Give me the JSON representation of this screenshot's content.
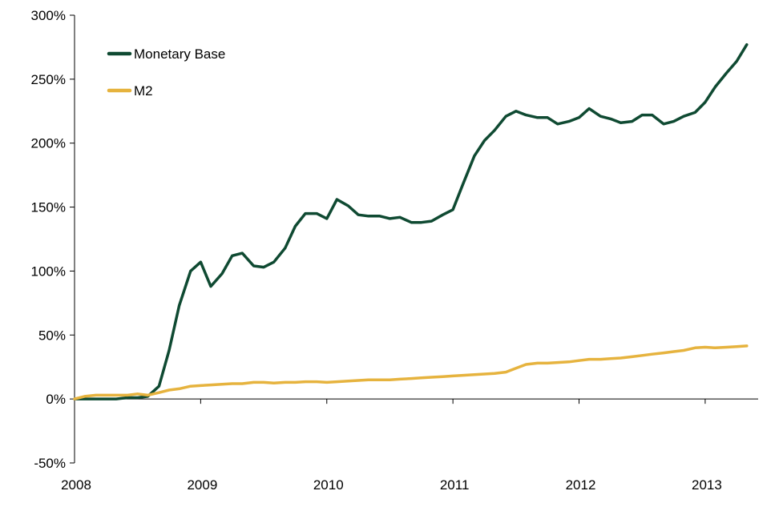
{
  "chart_data": {
    "type": "line",
    "title": "",
    "xlabel": "",
    "ylabel": "",
    "x_tick_labels": [
      "2008",
      "2009",
      "2010",
      "2011",
      "2012",
      "2013"
    ],
    "y_tick_labels": [
      "-50%",
      "0%",
      "50%",
      "100%",
      "150%",
      "200%",
      "250%",
      "300%"
    ],
    "ylim": [
      -50,
      300
    ],
    "xlim": [
      2008.0,
      2013.42
    ],
    "grid": false,
    "legend_position": "top-left",
    "series": [
      {
        "name": "Monetary Base",
        "color": "#0f4a32",
        "points": [
          [
            2008.0,
            0
          ],
          [
            2008.08,
            0
          ],
          [
            2008.17,
            0
          ],
          [
            2008.25,
            0
          ],
          [
            2008.33,
            0
          ],
          [
            2008.42,
            1
          ],
          [
            2008.5,
            1
          ],
          [
            2008.58,
            2
          ],
          [
            2008.67,
            10
          ],
          [
            2008.75,
            38
          ],
          [
            2008.83,
            73
          ],
          [
            2008.92,
            100
          ],
          [
            2009.0,
            107
          ],
          [
            2009.08,
            88
          ],
          [
            2009.17,
            98
          ],
          [
            2009.25,
            112
          ],
          [
            2009.33,
            114
          ],
          [
            2009.42,
            104
          ],
          [
            2009.5,
            103
          ],
          [
            2009.58,
            107
          ],
          [
            2009.67,
            118
          ],
          [
            2009.75,
            135
          ],
          [
            2009.83,
            145
          ],
          [
            2009.92,
            145
          ],
          [
            2010.0,
            141
          ],
          [
            2010.08,
            156
          ],
          [
            2010.17,
            151
          ],
          [
            2010.25,
            144
          ],
          [
            2010.33,
            143
          ],
          [
            2010.42,
            143
          ],
          [
            2010.5,
            141
          ],
          [
            2010.58,
            142
          ],
          [
            2010.67,
            138
          ],
          [
            2010.75,
            138
          ],
          [
            2010.83,
            139
          ],
          [
            2010.92,
            144
          ],
          [
            2011.0,
            148
          ],
          [
            2011.08,
            168
          ],
          [
            2011.17,
            190
          ],
          [
            2011.25,
            202
          ],
          [
            2011.33,
            210
          ],
          [
            2011.42,
            221
          ],
          [
            2011.5,
            225
          ],
          [
            2011.58,
            222
          ],
          [
            2011.67,
            220
          ],
          [
            2011.75,
            220
          ],
          [
            2011.83,
            215
          ],
          [
            2011.92,
            217
          ],
          [
            2012.0,
            220
          ],
          [
            2012.08,
            227
          ],
          [
            2012.17,
            221
          ],
          [
            2012.25,
            219
          ],
          [
            2012.33,
            216
          ],
          [
            2012.42,
            217
          ],
          [
            2012.5,
            222
          ],
          [
            2012.58,
            222
          ],
          [
            2012.67,
            215
          ],
          [
            2012.75,
            217
          ],
          [
            2012.83,
            221
          ],
          [
            2012.92,
            224
          ],
          [
            2013.0,
            232
          ],
          [
            2013.08,
            244
          ],
          [
            2013.17,
            255
          ],
          [
            2013.25,
            264
          ],
          [
            2013.33,
            277
          ]
        ]
      },
      {
        "name": "M2",
        "color": "#e6b33e",
        "points": [
          [
            2008.0,
            0
          ],
          [
            2008.08,
            2
          ],
          [
            2008.17,
            3
          ],
          [
            2008.25,
            3
          ],
          [
            2008.33,
            3
          ],
          [
            2008.42,
            3
          ],
          [
            2008.5,
            4
          ],
          [
            2008.58,
            3
          ],
          [
            2008.67,
            5
          ],
          [
            2008.75,
            7
          ],
          [
            2008.83,
            8
          ],
          [
            2008.92,
            10
          ],
          [
            2009.0,
            10.5
          ],
          [
            2009.08,
            11
          ],
          [
            2009.17,
            11.5
          ],
          [
            2009.25,
            12
          ],
          [
            2009.33,
            12
          ],
          [
            2009.42,
            13
          ],
          [
            2009.5,
            13
          ],
          [
            2009.58,
            12.5
          ],
          [
            2009.67,
            13
          ],
          [
            2009.75,
            13
          ],
          [
            2009.83,
            13.5
          ],
          [
            2009.92,
            13.5
          ],
          [
            2010.0,
            13
          ],
          [
            2010.08,
            13.5
          ],
          [
            2010.17,
            14
          ],
          [
            2010.25,
            14.5
          ],
          [
            2010.33,
            15
          ],
          [
            2010.42,
            15
          ],
          [
            2010.5,
            15
          ],
          [
            2010.58,
            15.5
          ],
          [
            2010.67,
            16
          ],
          [
            2010.75,
            16.5
          ],
          [
            2010.83,
            17
          ],
          [
            2010.92,
            17.5
          ],
          [
            2011.0,
            18
          ],
          [
            2011.08,
            18.5
          ],
          [
            2011.17,
            19
          ],
          [
            2011.25,
            19.5
          ],
          [
            2011.33,
            20
          ],
          [
            2011.42,
            21
          ],
          [
            2011.5,
            24
          ],
          [
            2011.58,
            27
          ],
          [
            2011.67,
            28
          ],
          [
            2011.75,
            28
          ],
          [
            2011.83,
            28.5
          ],
          [
            2011.92,
            29
          ],
          [
            2012.0,
            30
          ],
          [
            2012.08,
            31
          ],
          [
            2012.17,
            31
          ],
          [
            2012.25,
            31.5
          ],
          [
            2012.33,
            32
          ],
          [
            2012.42,
            33
          ],
          [
            2012.5,
            34
          ],
          [
            2012.58,
            35
          ],
          [
            2012.67,
            36
          ],
          [
            2012.75,
            37
          ],
          [
            2012.83,
            38
          ],
          [
            2012.92,
            40
          ],
          [
            2013.0,
            40.5
          ],
          [
            2013.08,
            40
          ],
          [
            2013.17,
            40.5
          ],
          [
            2013.25,
            41
          ],
          [
            2013.33,
            41.5
          ]
        ]
      }
    ]
  }
}
